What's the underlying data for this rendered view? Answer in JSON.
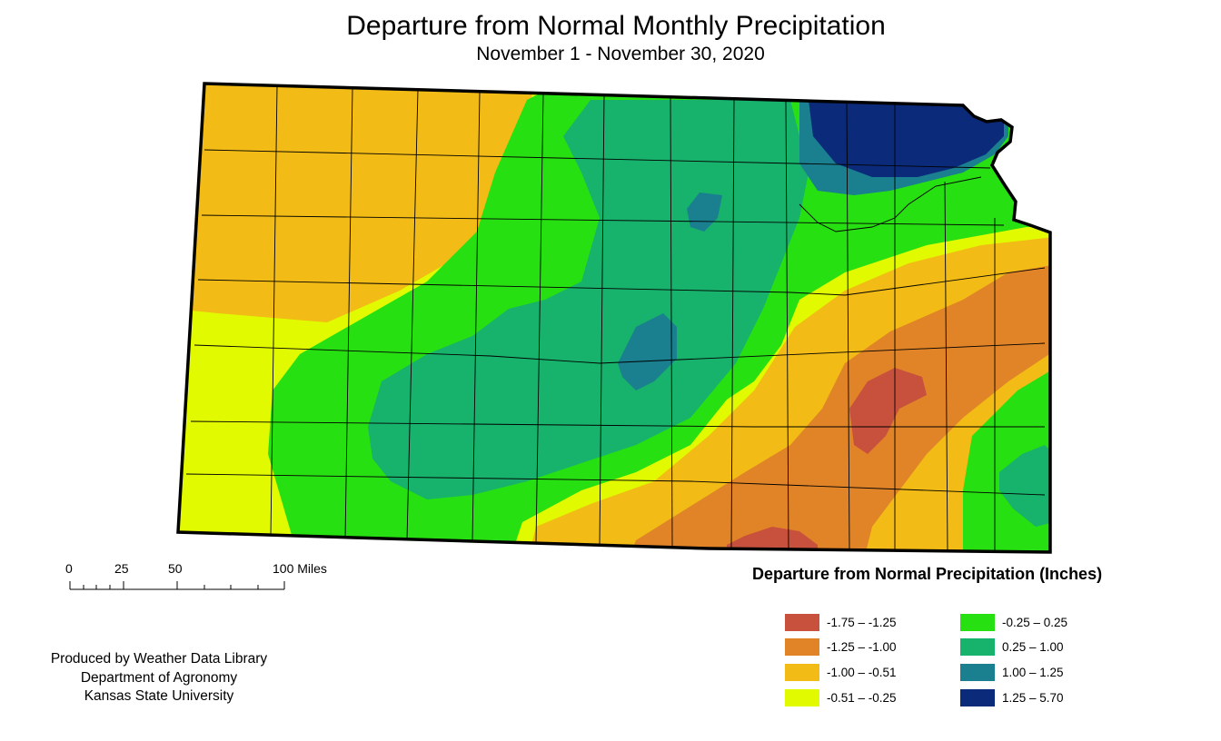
{
  "header": {
    "title": "Departure from Normal Monthly Precipitation",
    "subtitle": "November 1 - November 30, 2020"
  },
  "scale_bar": {
    "ticks": [
      "0",
      "25",
      "50",
      "100 Miles"
    ]
  },
  "credit": {
    "line1": "Produced by Weather Data Library",
    "line2": "Department of Agronomy",
    "line3": "Kansas State University"
  },
  "legend": {
    "title": "Departure from Normal Precipitation (Inches)",
    "classes": [
      {
        "label": "-1.75 – -1.25",
        "color": "#c8513e"
      },
      {
        "label": "-1.25 – -1.00",
        "color": "#e08427"
      },
      {
        "label": "-1.00 – -0.51",
        "color": "#f2bb15"
      },
      {
        "label": "-0.51 – -0.25",
        "color": "#e2fa00"
      },
      {
        "label": "-0.25 – 0.25",
        "color": "#27e012"
      },
      {
        "label": "0.25 – 1.00",
        "color": "#17b26b"
      },
      {
        "label": "1.00 – 1.25",
        "color": "#1a7f8e"
      },
      {
        "label": "1.25 – 5.70",
        "color": "#0b2a7a"
      }
    ]
  }
}
